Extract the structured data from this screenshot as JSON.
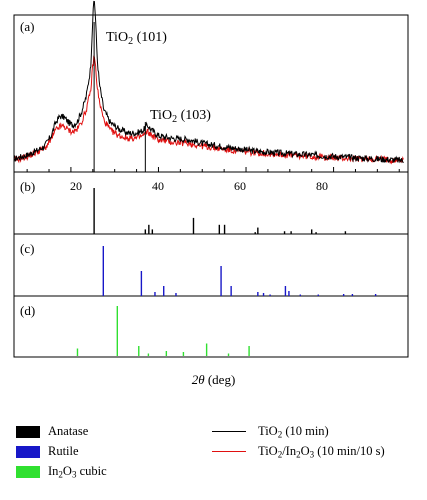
{
  "chart_data": [
    {
      "type": "line",
      "panel_label": "(a)",
      "series": [
        {
          "name": "TiO2 (10 min)",
          "color": "#000000",
          "x": [
            7,
            10,
            12,
            14,
            15.5,
            16.5,
            17.5,
            18.5,
            19.5,
            20.5,
            21.5,
            22.5,
            23.5,
            24.5,
            25.0,
            25.3,
            25.6,
            26.0,
            26.5,
            27.5,
            29,
            31,
            33,
            35,
            36.5,
            37.5,
            38.5,
            40,
            43,
            47,
            50,
            54,
            58,
            62,
            66,
            70,
            75,
            80,
            85,
            90,
            96
          ],
          "y": [
            0.1,
            0.13,
            0.16,
            0.2,
            0.28,
            0.38,
            0.43,
            0.42,
            0.38,
            0.36,
            0.39,
            0.47,
            0.58,
            0.8,
            1.18,
            1.35,
            1.2,
            0.88,
            0.68,
            0.48,
            0.38,
            0.33,
            0.3,
            0.3,
            0.32,
            0.36,
            0.32,
            0.28,
            0.26,
            0.25,
            0.22,
            0.2,
            0.18,
            0.16,
            0.15,
            0.14,
            0.13,
            0.12,
            0.11,
            0.1,
            0.09
          ]
        },
        {
          "name": "TiO2/In2O3 (10 min/10 s)",
          "color": "#e01010",
          "x": [
            7,
            10,
            12,
            14,
            15.5,
            16.5,
            17.5,
            18.5,
            19.5,
            20.5,
            21.5,
            22.5,
            23.5,
            24.5,
            25.0,
            25.3,
            25.6,
            26.0,
            26.5,
            27.5,
            29,
            31,
            33,
            35,
            36.5,
            37.5,
            38.5,
            40,
            43,
            47,
            50,
            54,
            58,
            62,
            66,
            70,
            75,
            80,
            85,
            90,
            96
          ],
          "y": [
            0.09,
            0.12,
            0.15,
            0.18,
            0.25,
            0.32,
            0.35,
            0.35,
            0.32,
            0.31,
            0.33,
            0.39,
            0.48,
            0.62,
            0.82,
            0.9,
            0.82,
            0.66,
            0.54,
            0.4,
            0.32,
            0.28,
            0.26,
            0.26,
            0.28,
            0.31,
            0.28,
            0.25,
            0.23,
            0.22,
            0.2,
            0.18,
            0.16,
            0.15,
            0.14,
            0.13,
            0.12,
            0.11,
            0.1,
            0.1,
            0.09
          ]
        }
      ],
      "annotations": [
        {
          "label": "TiO2 (101)",
          "x": 25.3
        },
        {
          "label": "TiO2 (103)",
          "x": 37.0
        }
      ],
      "xlim": [
        7,
        97
      ],
      "xticks": [
        20,
        40,
        60,
        80
      ]
    },
    {
      "type": "bar",
      "panel_label": "(b)",
      "name": "Anatase",
      "color": "#000000",
      "x": [
        25.3,
        37.0,
        37.8,
        38.6,
        48.0,
        53.9,
        55.1,
        62.1,
        62.7,
        68.8,
        70.3,
        75.0,
        76.0,
        82.7
      ],
      "values": [
        100,
        10,
        20,
        10,
        35,
        20,
        20,
        4,
        14,
        6,
        6,
        10,
        4,
        6
      ]
    },
    {
      "type": "bar",
      "panel_label": "(c)",
      "name": "Rutile",
      "color": "#1818c8",
      "x": [
        27.4,
        36.1,
        39.2,
        41.2,
        44.0,
        54.3,
        56.6,
        62.7,
        64.0,
        65.5,
        69.0,
        69.8,
        72.4,
        76.5,
        82.3,
        84.3,
        89.6
      ],
      "values": [
        100,
        50,
        8,
        20,
        6,
        60,
        20,
        8,
        6,
        3,
        20,
        10,
        3,
        3,
        4,
        4,
        4
      ]
    },
    {
      "type": "bar",
      "panel_label": "(d)",
      "name": "In2O3 cubic",
      "color": "#30e030",
      "x": [
        21.5,
        30.6,
        35.5,
        37.7,
        41.8,
        45.7,
        51.0,
        56.0,
        60.7
      ],
      "values": [
        15,
        100,
        20,
        5,
        10,
        8,
        25,
        5,
        20
      ]
    }
  ],
  "axis": {
    "xlabel_symbol": "2θ",
    "xlabel_unit": "(deg)",
    "ticks": [
      "20",
      "40",
      "60",
      "80"
    ]
  },
  "annotation_text": {
    "peak1_main": "TiO",
    "peak1_sub": "2",
    "peak1_hkl": " (101)",
    "peak2_main": "TiO",
    "peak2_sub": "2",
    "peak2_hkl": " (103)"
  },
  "legend": {
    "anatase": {
      "label": "Anatase",
      "color": "#000000"
    },
    "rutile": {
      "label": "Rutile",
      "color": "#1818c8"
    },
    "in2o3": {
      "label_main": "In",
      "label_sub1": "2",
      "label_mid": "O",
      "label_sub2": "3",
      "label_tail": " cubic",
      "color": "#30e030"
    },
    "tio2": {
      "main": "TiO",
      "sub": "2",
      "tail": " (10 min)",
      "color": "#000000"
    },
    "composite": {
      "main1": "TiO",
      "sub1": "2",
      "mid": "/In",
      "sub2": "2",
      "main2": "O",
      "sub3": "3",
      "tail": " (10 min/10 s)",
      "color": "#e01010"
    }
  }
}
